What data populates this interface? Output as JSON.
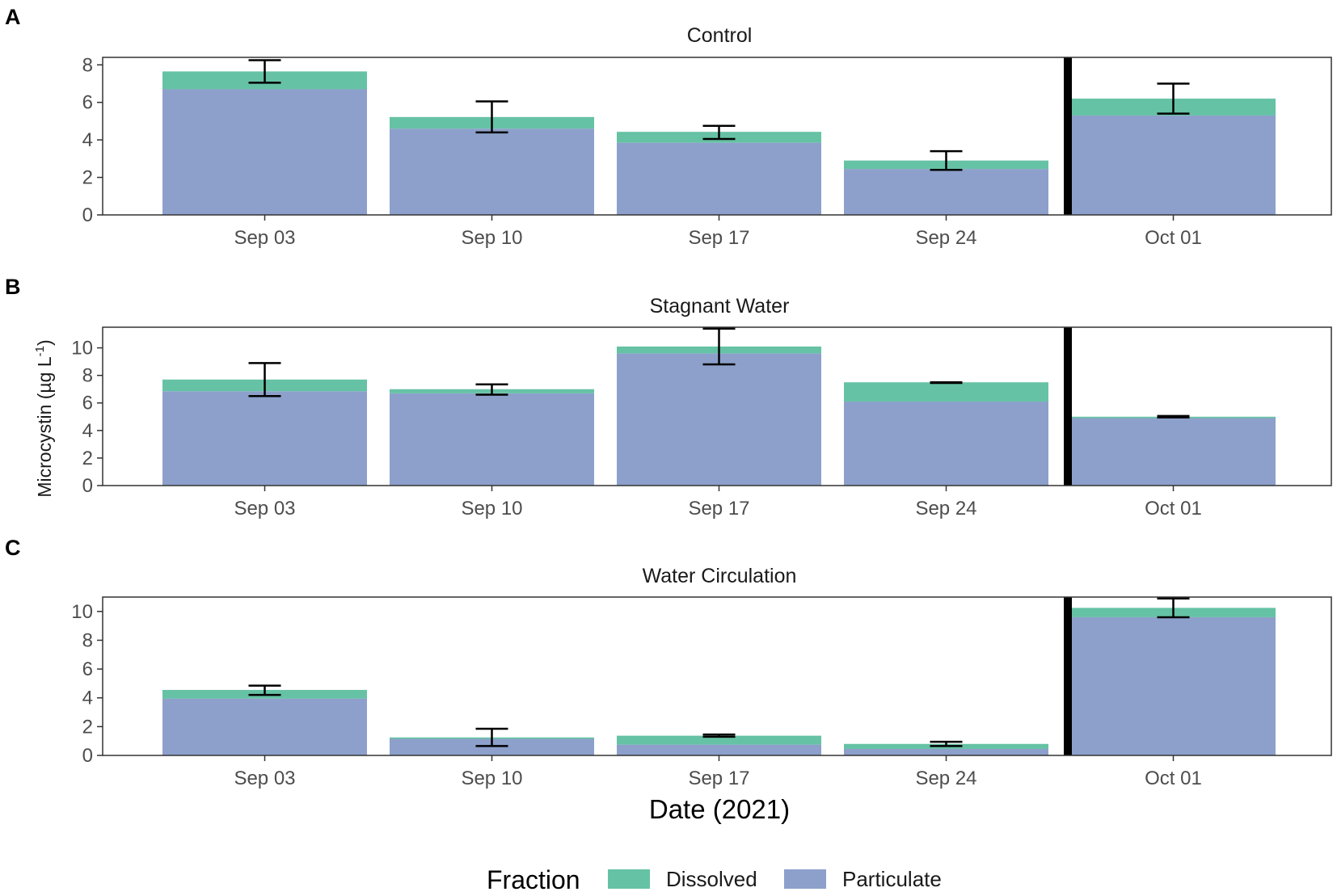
{
  "chart_data": [
    {
      "type": "bar",
      "stacked": true,
      "panel_letter": "A",
      "title": "Control",
      "ylim": [
        0,
        8.4
      ],
      "yticks": [
        0,
        2,
        4,
        6,
        8
      ],
      "categories": [
        "Sep 03",
        "Sep 10",
        "Sep 17",
        "Sep 24",
        "Oct 01"
      ],
      "series": [
        {
          "name": "Particulate",
          "values": [
            6.7,
            4.6,
            3.85,
            2.45,
            5.3
          ]
        },
        {
          "name": "Dissolved",
          "values": [
            0.95,
            0.62,
            0.58,
            0.45,
            0.9
          ]
        }
      ],
      "error_bars": [
        [
          7.05,
          8.25
        ],
        [
          4.4,
          6.05
        ],
        [
          4.05,
          4.75
        ],
        [
          2.4,
          3.4
        ],
        [
          5.4,
          7.0
        ]
      ],
      "vertical_line_before": "Oct 01"
    },
    {
      "type": "bar",
      "stacked": true,
      "panel_letter": "B",
      "title": "Stagnant Water",
      "ylim": [
        0,
        11.5
      ],
      "yticks": [
        0,
        2,
        4,
        6,
        8,
        10
      ],
      "categories": [
        "Sep 03",
        "Sep 10",
        "Sep 17",
        "Sep 24",
        "Oct 01"
      ],
      "series": [
        {
          "name": "Particulate",
          "values": [
            6.85,
            6.7,
            9.6,
            6.1,
            4.9
          ]
        },
        {
          "name": "Dissolved",
          "values": [
            0.85,
            0.3,
            0.5,
            1.4,
            0.1
          ]
        }
      ],
      "error_bars": [
        [
          6.5,
          8.9
        ],
        [
          6.6,
          7.35
        ],
        [
          8.8,
          11.4
        ],
        [
          7.45,
          7.5
        ],
        [
          4.95,
          5.05
        ]
      ],
      "vertical_line_before": "Oct 01"
    },
    {
      "type": "bar",
      "stacked": true,
      "panel_letter": "C",
      "title": "Water Circulation",
      "ylim": [
        0,
        11.0
      ],
      "yticks": [
        0,
        2,
        4,
        6,
        8,
        10
      ],
      "categories": [
        "Sep 03",
        "Sep 10",
        "Sep 17",
        "Sep 24",
        "Oct 01"
      ],
      "series": [
        {
          "name": "Particulate",
          "values": [
            3.95,
            1.15,
            0.75,
            0.45,
            9.6
          ]
        },
        {
          "name": "Dissolved",
          "values": [
            0.6,
            0.1,
            0.62,
            0.35,
            0.65
          ]
        }
      ],
      "error_bars": [
        [
          4.2,
          4.85
        ],
        [
          0.65,
          1.85
        ],
        [
          1.3,
          1.45
        ],
        [
          0.65,
          0.95
        ],
        [
          9.6,
          10.9
        ]
      ],
      "vertical_line_before": "Oct 01"
    }
  ],
  "axes": {
    "ylabel_main": "Microcystin (µg L",
    "ylabel_sup": "-1",
    "ylabel_close": ")",
    "xlabel": "Date (2021)"
  },
  "legend": {
    "title": "Fraction",
    "items": [
      {
        "label": "Dissolved",
        "color": "#66c2a5"
      },
      {
        "label": "Particulate",
        "color": "#8da0cb"
      }
    ]
  },
  "colors": {
    "Particulate": "#8da0cb",
    "Dissolved": "#66c2a5",
    "errorbar": "#000000",
    "divider": "#000000",
    "frame": "#333333"
  }
}
